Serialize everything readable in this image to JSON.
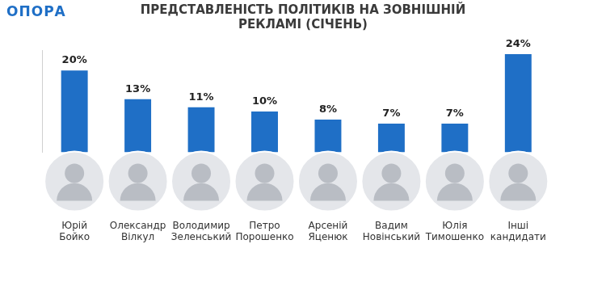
{
  "logo": "ОПОРА",
  "chart_data": {
    "type": "bar",
    "title": [
      "ПРЕДСТАВЛЕНІСТЬ ПОЛІТИКІВ НА ЗОВНІШНІЙ",
      "РЕКЛАМІ (СІЧЕНЬ)"
    ],
    "categories": [
      "Юрій Бойко",
      "Олександр Вілкул",
      "Володимир Зеленський",
      "Петро Порошенко",
      "Арсеній Яценюк",
      "Вадим Новінський",
      "Юлія Тимошенко",
      "Інші кандидати"
    ],
    "values": [
      20,
      13,
      11,
      10,
      8,
      7,
      7,
      24
    ],
    "value_labels": [
      "20%",
      "13%",
      "11%",
      "10%",
      "8%",
      "7%",
      "7%",
      "24%"
    ],
    "color": "#1f6fc6",
    "ylim": [
      0,
      25
    ],
    "grid": false,
    "data_labels": true,
    "tick_labels": "x"
  }
}
